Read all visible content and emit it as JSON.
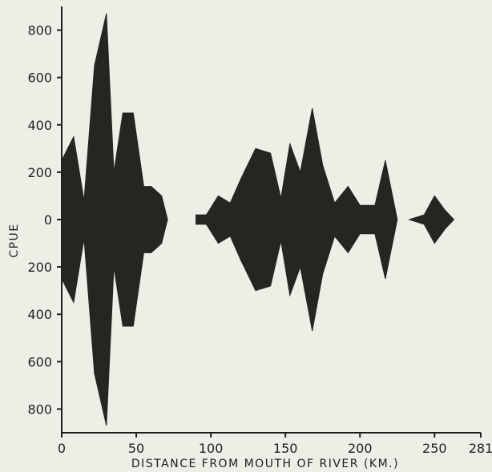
{
  "chart_data": {
    "type": "area",
    "subtype": "kite-diagram",
    "xlabel": "DISTANCE FROM MOUTH OF RIVER (KM.)",
    "ylabel": "CPUE",
    "xlim": [
      0,
      281
    ],
    "ylim": [
      -900,
      900
    ],
    "x_ticks": [
      0,
      50,
      100,
      150,
      200,
      250,
      281
    ],
    "y_ticks": [
      {
        "value": 800,
        "label": "800"
      },
      {
        "value": 600,
        "label": "600"
      },
      {
        "value": 400,
        "label": "400"
      },
      {
        "value": 200,
        "label": "200"
      },
      {
        "value": 0,
        "label": "0"
      },
      {
        "value": -200,
        "label": "200"
      },
      {
        "value": -400,
        "label": "400"
      },
      {
        "value": -600,
        "label": "600"
      },
      {
        "value": -800,
        "label": "800"
      }
    ],
    "grid": false,
    "fill_color": "#262522",
    "series": [
      {
        "x": [
          0,
          8,
          15,
          22,
          30,
          35,
          41,
          48,
          55,
          60,
          67,
          71
        ],
        "y": [
          250,
          350,
          80,
          650,
          870,
          200,
          450,
          450,
          140,
          140,
          100,
          0
        ]
      },
      {
        "x": [
          90,
          97,
          105,
          113,
          120,
          130,
          140,
          147,
          153,
          160,
          168,
          175,
          183,
          192,
          200,
          210,
          217,
          225
        ],
        "y": [
          20,
          20,
          100,
          70,
          170,
          300,
          280,
          90,
          320,
          200,
          470,
          230,
          70,
          140,
          60,
          60,
          250,
          0
        ]
      },
      {
        "x": [
          233,
          243,
          250,
          257,
          263
        ],
        "y": [
          0,
          20,
          100,
          40,
          0
        ]
      }
    ]
  }
}
